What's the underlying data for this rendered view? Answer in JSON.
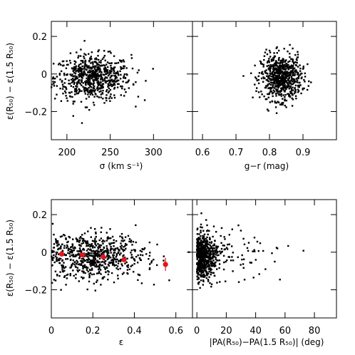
{
  "chart_data": [
    {
      "type": "scatter",
      "panel": "top-left",
      "xlabel": "σ (km s⁻¹)",
      "ylabel": "ε(R₅₀) − ε(1.5 R₅₀)",
      "xlim": [
        182,
        345
      ],
      "ylim": [
        -0.35,
        0.28
      ],
      "xticks": [
        200,
        250,
        300
      ],
      "yticks": [
        -0.2,
        0,
        0.2
      ],
      "xtick_labels": [
        "200",
        "250",
        "300"
      ],
      "ytick_labels": [
        "−0.2",
        "0",
        "0.2"
      ],
      "cloud": {
        "x_center": 230,
        "x_spread": 22,
        "y_center": -0.02,
        "y_spread": 0.06,
        "n_points": 700
      }
    },
    {
      "type": "scatter",
      "panel": "top-right",
      "xlabel": "g−r (mag)",
      "ylabel": "",
      "xlim": [
        0.57,
        1.0
      ],
      "ylim": [
        -0.35,
        0.28
      ],
      "xticks": [
        0.6,
        0.7,
        0.8,
        0.9
      ],
      "yticks": [
        -0.2,
        0,
        0.2
      ],
      "xtick_labels": [
        "0.6",
        "0.7",
        "0.8",
        "0.9"
      ],
      "ytick_labels": [],
      "cloud": {
        "x_center": 0.835,
        "x_spread": 0.03,
        "y_center": -0.02,
        "y_spread": 0.06,
        "n_points": 700
      }
    },
    {
      "type": "scatter",
      "panel": "bottom-left",
      "xlabel": "ε",
      "ylabel": "ε(R₅₀) − ε(1.5 R₅₀)",
      "xlim": [
        0,
        0.68
      ],
      "ylim": [
        -0.35,
        0.28
      ],
      "xticks": [
        0,
        0.2,
        0.4,
        0.6
      ],
      "yticks": [
        -0.2,
        0,
        0.2
      ],
      "xtick_labels": [
        "0",
        "0.2",
        "0.4",
        "0.6"
      ],
      "ytick_labels": [
        "−0.2",
        "0",
        "0.2"
      ],
      "cloud": {
        "x_center": 0.2,
        "x_spread": 0.13,
        "y_center": -0.02,
        "y_spread": 0.06,
        "n_points": 700
      },
      "binned_means": [
        {
          "x": 0.05,
          "y": -0.01,
          "err": 0.004
        },
        {
          "x": 0.15,
          "y": -0.015,
          "err": 0.005
        },
        {
          "x": 0.25,
          "y": -0.025,
          "err": 0.006
        },
        {
          "x": 0.35,
          "y": -0.04,
          "err": 0.012
        },
        {
          "x": 0.55,
          "y": -0.065,
          "err": 0.035
        }
      ],
      "binned_color": "#e8141b"
    },
    {
      "type": "scatter",
      "panel": "bottom-right",
      "xlabel": "|PA(R₅₀)−PA(1.5 R₅₀)| (deg)",
      "ylabel": "",
      "xlim": [
        -3,
        95
      ],
      "ylim": [
        -0.35,
        0.28
      ],
      "xticks": [
        0,
        20,
        40,
        60,
        80
      ],
      "yticks": [
        -0.2,
        0,
        0.2
      ],
      "xtick_labels": [
        "0",
        "20",
        "40",
        "60",
        "80"
      ],
      "ytick_labels": [],
      "cloud": {
        "x_center": 3,
        "x_spread": 6,
        "y_center": -0.02,
        "y_spread": 0.06,
        "n_points": 700
      }
    }
  ],
  "colors": {
    "points": "#000000",
    "binned_means": "#e8141b"
  }
}
